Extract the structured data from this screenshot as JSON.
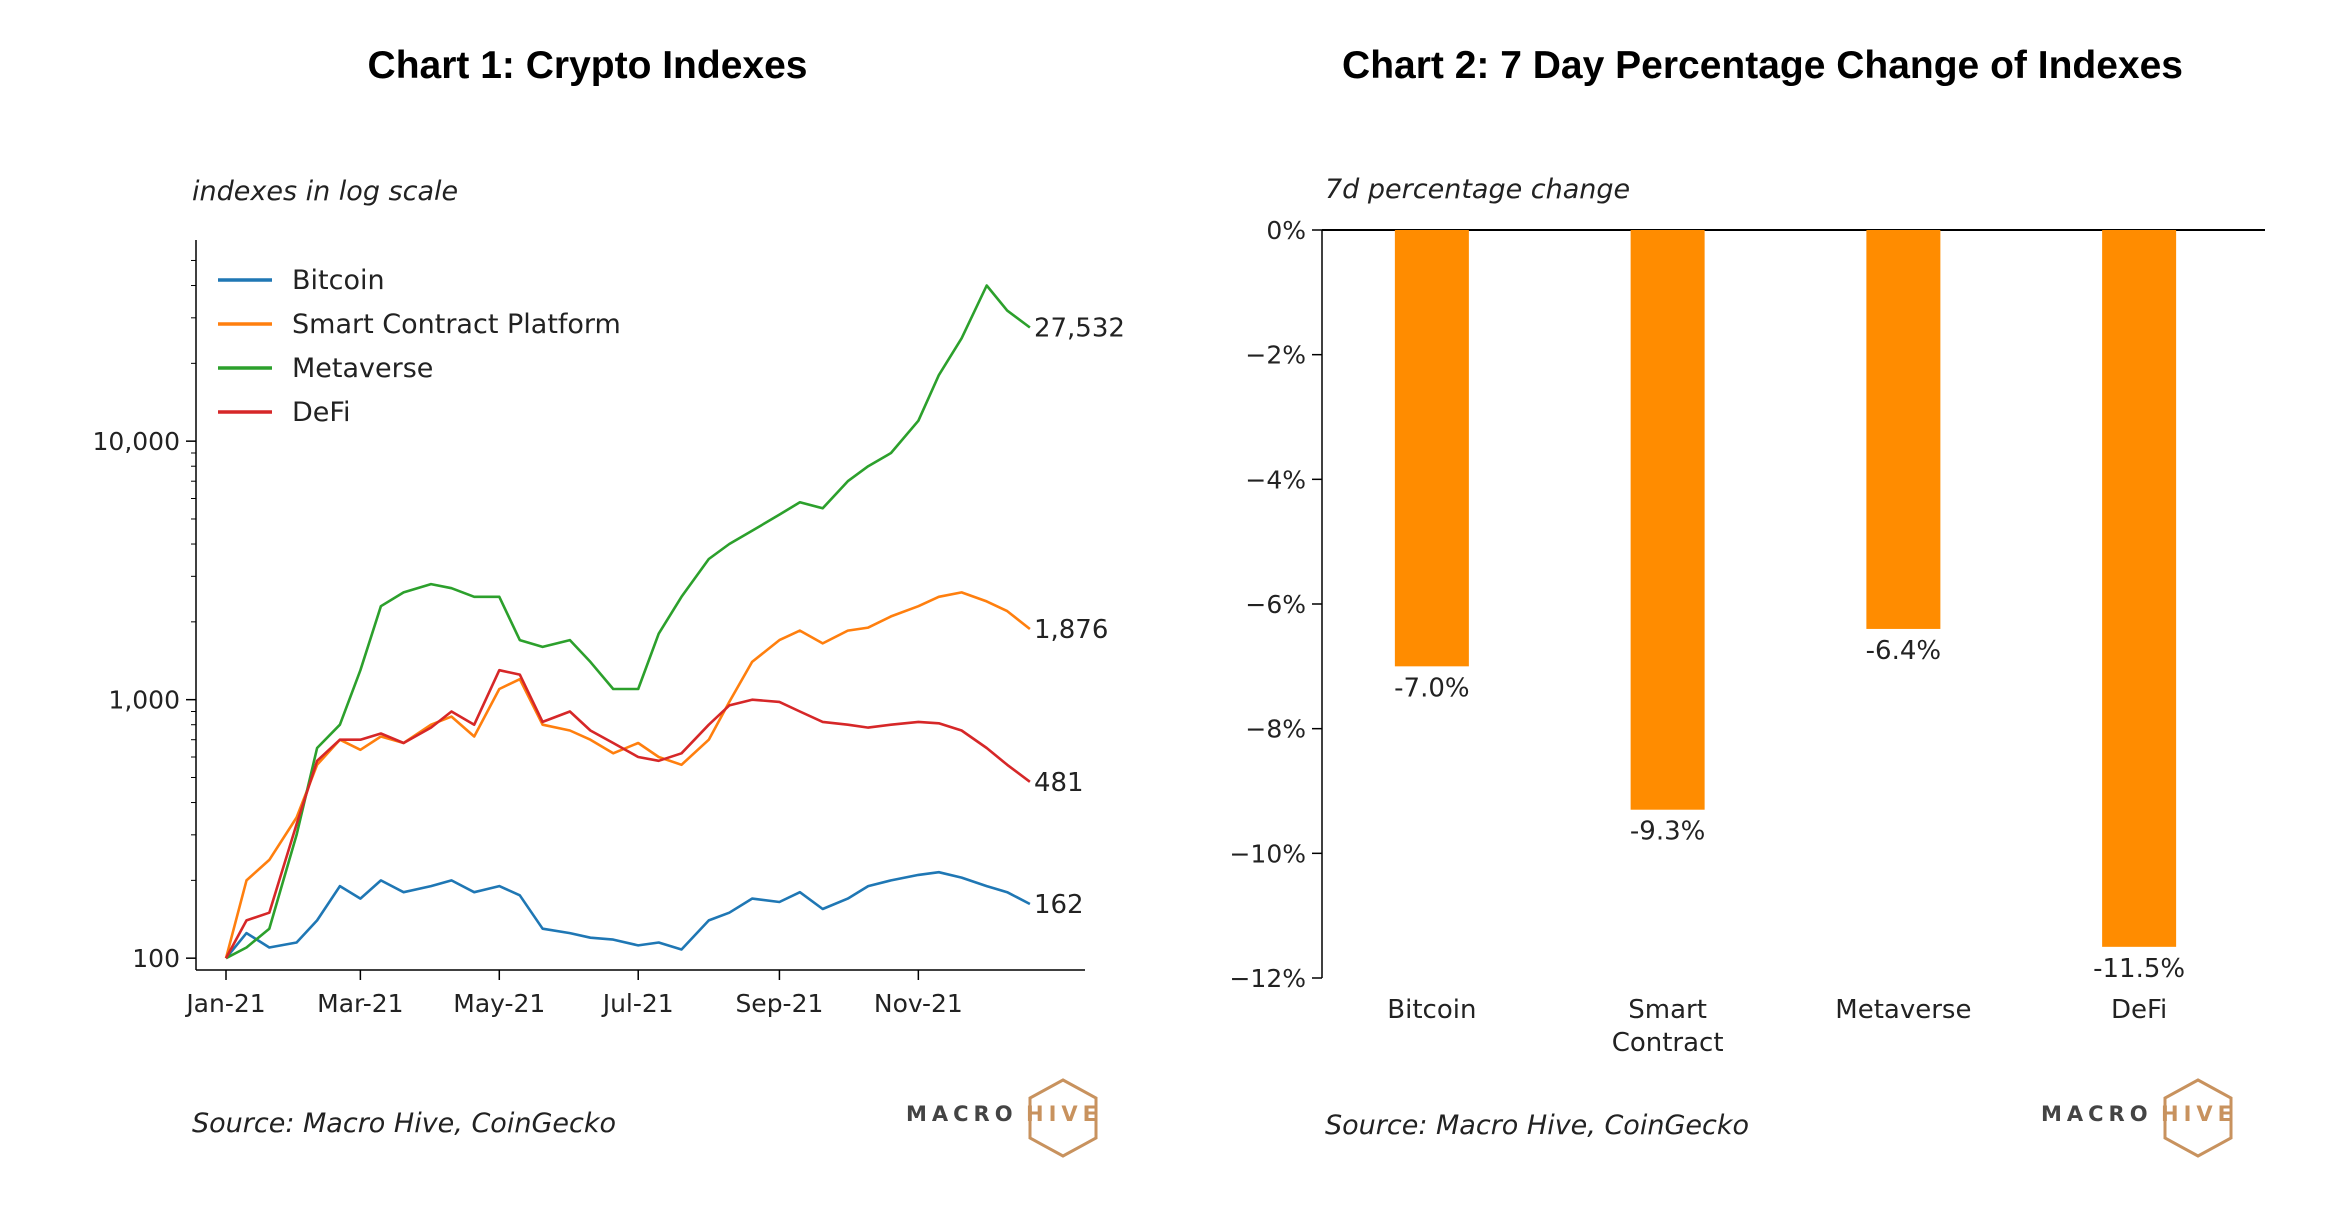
{
  "left": {
    "title": "Chart 1: Crypto Indexes",
    "subtitle": "indexes in log scale",
    "source": "Source: Macro Hive, CoinGecko",
    "logo": {
      "word1": "MACRO",
      "word2": "HIVE"
    }
  },
  "right": {
    "title": "Chart 2: 7 Day Percentage Change of Indexes",
    "subtitle": "7d percentage change",
    "source": "Source: Macro Hive, CoinGecko",
    "logo": {
      "word1": "MACRO",
      "word2": "HIVE"
    }
  },
  "colors": {
    "bitcoin": "#1f77b4",
    "smart": "#ff7f0e",
    "metaverse": "#2ca02c",
    "defi": "#d62728",
    "bar": "#ff8c00",
    "logo_gray": "#444444",
    "logo_copper": "#c8925e"
  },
  "chart_data": [
    {
      "type": "line",
      "title": "Chart 1: Crypto Indexes",
      "ylabel": "indexes in log scale",
      "yscale": "log",
      "ylim": [
        90,
        60000
      ],
      "yticks": [
        100,
        1000,
        10000
      ],
      "ytick_labels": [
        "100",
        "1,000",
        "10,000"
      ],
      "xlim": [
        "2021-01-01",
        "2021-12-31"
      ],
      "xticks": [
        "2021-01-01",
        "2021-03-01",
        "2021-05-01",
        "2021-07-01",
        "2021-09-01",
        "2021-11-01"
      ],
      "xtick_labels": [
        "Jan-21",
        "Mar-21",
        "May-21",
        "Jul-21",
        "Sep-21",
        "Nov-21"
      ],
      "legend_position": "top-left",
      "grid": false,
      "series": [
        {
          "name": "Bitcoin",
          "end_label": "162",
          "x": [
            "2021-01-01",
            "2021-01-10",
            "2021-01-20",
            "2021-02-01",
            "2021-02-10",
            "2021-02-20",
            "2021-03-01",
            "2021-03-10",
            "2021-03-20",
            "2021-04-01",
            "2021-04-10",
            "2021-04-20",
            "2021-05-01",
            "2021-05-10",
            "2021-05-20",
            "2021-06-01",
            "2021-06-10",
            "2021-06-20",
            "2021-07-01",
            "2021-07-10",
            "2021-07-20",
            "2021-08-01",
            "2021-08-10",
            "2021-08-20",
            "2021-09-01",
            "2021-09-10",
            "2021-09-20",
            "2021-10-01",
            "2021-10-10",
            "2021-10-20",
            "2021-11-01",
            "2021-11-10",
            "2021-11-20",
            "2021-12-01",
            "2021-12-10",
            "2021-12-20"
          ],
          "y": [
            100,
            125,
            110,
            115,
            140,
            190,
            170,
            200,
            180,
            190,
            200,
            180,
            190,
            175,
            130,
            125,
            120,
            118,
            112,
            115,
            108,
            140,
            150,
            170,
            165,
            180,
            155,
            170,
            190,
            200,
            210,
            215,
            205,
            190,
            180,
            162
          ]
        },
        {
          "name": "Smart Contract Platform",
          "end_label": "1,876",
          "x": [
            "2021-01-01",
            "2021-01-10",
            "2021-01-20",
            "2021-02-01",
            "2021-02-10",
            "2021-02-20",
            "2021-03-01",
            "2021-03-10",
            "2021-03-20",
            "2021-04-01",
            "2021-04-10",
            "2021-04-20",
            "2021-05-01",
            "2021-05-10",
            "2021-05-20",
            "2021-06-01",
            "2021-06-10",
            "2021-06-20",
            "2021-07-01",
            "2021-07-10",
            "2021-07-20",
            "2021-08-01",
            "2021-08-10",
            "2021-08-20",
            "2021-09-01",
            "2021-09-10",
            "2021-09-20",
            "2021-10-01",
            "2021-10-10",
            "2021-10-20",
            "2021-11-01",
            "2021-11-10",
            "2021-11-20",
            "2021-12-01",
            "2021-12-10",
            "2021-12-20"
          ],
          "y": [
            100,
            200,
            240,
            350,
            560,
            700,
            640,
            720,
            680,
            800,
            860,
            720,
            1100,
            1200,
            800,
            760,
            700,
            620,
            680,
            600,
            560,
            700,
            980,
            1400,
            1700,
            1850,
            1650,
            1850,
            1900,
            2100,
            2300,
            2500,
            2600,
            2400,
            2200,
            1876
          ]
        },
        {
          "name": "Metaverse",
          "end_label": "27,532",
          "x": [
            "2021-01-01",
            "2021-01-10",
            "2021-01-20",
            "2021-02-01",
            "2021-02-10",
            "2021-02-20",
            "2021-03-01",
            "2021-03-10",
            "2021-03-20",
            "2021-04-01",
            "2021-04-10",
            "2021-04-20",
            "2021-05-01",
            "2021-05-10",
            "2021-05-20",
            "2021-06-01",
            "2021-06-10",
            "2021-06-20",
            "2021-07-01",
            "2021-07-10",
            "2021-07-20",
            "2021-08-01",
            "2021-08-10",
            "2021-08-20",
            "2021-09-01",
            "2021-09-10",
            "2021-09-20",
            "2021-10-01",
            "2021-10-10",
            "2021-10-20",
            "2021-11-01",
            "2021-11-10",
            "2021-11-20",
            "2021-12-01",
            "2021-12-10",
            "2021-12-20"
          ],
          "y": [
            100,
            110,
            130,
            300,
            650,
            800,
            1300,
            2300,
            2600,
            2800,
            2700,
            2500,
            2500,
            1700,
            1600,
            1700,
            1400,
            1100,
            1100,
            1800,
            2500,
            3500,
            4000,
            4500,
            5200,
            5800,
            5500,
            7000,
            8000,
            9000,
            12000,
            18000,
            25000,
            40000,
            32000,
            27532
          ]
        },
        {
          "name": "DeFi",
          "end_label": "481",
          "x": [
            "2021-01-01",
            "2021-01-10",
            "2021-01-20",
            "2021-02-01",
            "2021-02-10",
            "2021-02-20",
            "2021-03-01",
            "2021-03-10",
            "2021-03-20",
            "2021-04-01",
            "2021-04-10",
            "2021-04-20",
            "2021-05-01",
            "2021-05-10",
            "2021-05-20",
            "2021-06-01",
            "2021-06-10",
            "2021-06-20",
            "2021-07-01",
            "2021-07-10",
            "2021-07-20",
            "2021-08-01",
            "2021-08-10",
            "2021-08-20",
            "2021-09-01",
            "2021-09-10",
            "2021-09-20",
            "2021-10-01",
            "2021-10-10",
            "2021-10-20",
            "2021-11-01",
            "2021-11-10",
            "2021-11-20",
            "2021-12-01",
            "2021-12-10",
            "2021-12-20"
          ],
          "y": [
            100,
            140,
            150,
            330,
            580,
            700,
            700,
            740,
            680,
            780,
            900,
            800,
            1300,
            1250,
            820,
            900,
            760,
            680,
            600,
            580,
            620,
            800,
            950,
            1000,
            980,
            900,
            820,
            800,
            780,
            800,
            820,
            810,
            760,
            650,
            560,
            481
          ]
        }
      ]
    },
    {
      "type": "bar",
      "title": "Chart 2: 7 Day Percentage Change of Indexes",
      "ylabel": "7d percentage change",
      "categories": [
        "Bitcoin",
        "Smart\nContract",
        "Metaverse",
        "DeFi"
      ],
      "values": [
        -7.0,
        -9.3,
        -6.4,
        -11.5
      ],
      "data_labels": [
        "-7.0%",
        "-9.3%",
        "-6.4%",
        "-11.5%"
      ],
      "ylim": [
        -12,
        0
      ],
      "yticks": [
        0,
        -2,
        -4,
        -6,
        -8,
        -10,
        -12
      ],
      "ytick_labels": [
        "0%",
        "−2%",
        "−4%",
        "−6%",
        "−8%",
        "−10%",
        "−12%"
      ],
      "grid": false
    }
  ]
}
